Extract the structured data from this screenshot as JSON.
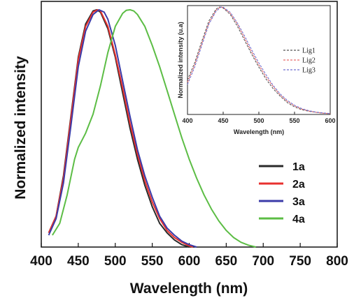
{
  "chart_data": [
    {
      "type": "line",
      "xlabel": "Wavelength (nm)",
      "ylabel": "Normalized intensity",
      "xlim": [
        400,
        800
      ],
      "ylim": [
        0,
        1
      ],
      "xticks": [
        400,
        450,
        500,
        550,
        600,
        650,
        700,
        750,
        800
      ],
      "legend_position": "right",
      "series": [
        {
          "name": "1a",
          "color": "#2a2a2a",
          "x": [
            410,
            420,
            430,
            440,
            450,
            460,
            470,
            475,
            480,
            490,
            500,
            510,
            520,
            530,
            540,
            550,
            560,
            570,
            580,
            590,
            600
          ],
          "y": [
            0.06,
            0.13,
            0.3,
            0.55,
            0.8,
            0.94,
            0.995,
            1.0,
            0.99,
            0.92,
            0.8,
            0.65,
            0.5,
            0.37,
            0.26,
            0.17,
            0.1,
            0.06,
            0.03,
            0.01,
            0.0
          ]
        },
        {
          "name": "2a",
          "color": "#e8312f",
          "x": [
            410,
            420,
            430,
            440,
            450,
            460,
            470,
            476,
            480,
            490,
            500,
            510,
            520,
            530,
            540,
            550,
            560,
            570,
            580,
            590,
            600,
            605
          ],
          "y": [
            0.06,
            0.13,
            0.29,
            0.54,
            0.79,
            0.93,
            0.99,
            1.0,
            0.995,
            0.93,
            0.81,
            0.67,
            0.52,
            0.39,
            0.28,
            0.19,
            0.12,
            0.07,
            0.04,
            0.02,
            0.005,
            0.0
          ]
        },
        {
          "name": "3a",
          "color": "#3b3ba8",
          "x": [
            410,
            420,
            430,
            440,
            450,
            460,
            470,
            478,
            485,
            490,
            500,
            510,
            520,
            530,
            540,
            550,
            560,
            570,
            580,
            590,
            600,
            610
          ],
          "y": [
            0.05,
            0.12,
            0.27,
            0.51,
            0.76,
            0.91,
            0.98,
            1.0,
            0.99,
            0.96,
            0.85,
            0.7,
            0.55,
            0.41,
            0.3,
            0.21,
            0.13,
            0.08,
            0.05,
            0.025,
            0.01,
            0.0
          ]
        },
        {
          "name": "4a",
          "color": "#5cbd45",
          "x": [
            415,
            425,
            435,
            445,
            450,
            460,
            470,
            480,
            490,
            500,
            510,
            515,
            520,
            525,
            530,
            540,
            550,
            560,
            570,
            580,
            590,
            600,
            610,
            620,
            630,
            640,
            650,
            660,
            670,
            680,
            690
          ],
          "y": [
            0.05,
            0.1,
            0.22,
            0.37,
            0.42,
            0.48,
            0.56,
            0.68,
            0.82,
            0.93,
            0.985,
            0.998,
            1.0,
            0.995,
            0.98,
            0.93,
            0.85,
            0.76,
            0.66,
            0.56,
            0.46,
            0.37,
            0.29,
            0.22,
            0.16,
            0.11,
            0.07,
            0.04,
            0.02,
            0.008,
            0.0
          ]
        }
      ]
    },
    {
      "type": "line",
      "xlabel": "Wavelength (nm)",
      "ylabel": "Normalized intensity (u.a)",
      "xlim": [
        400,
        600
      ],
      "ylim": [
        0,
        1
      ],
      "xticks": [
        400,
        450,
        500,
        550,
        600
      ],
      "legend_position": "right",
      "series": [
        {
          "name": "Lig1",
          "color": "#555555",
          "x": [
            400,
            410,
            420,
            430,
            440,
            445,
            450,
            460,
            470,
            480,
            490,
            500,
            510,
            520,
            530,
            540,
            550,
            560,
            570,
            580,
            590,
            600
          ],
          "y": [
            0.32,
            0.48,
            0.68,
            0.87,
            0.98,
            1.0,
            0.99,
            0.93,
            0.82,
            0.69,
            0.56,
            0.44,
            0.33,
            0.24,
            0.17,
            0.11,
            0.07,
            0.045,
            0.03,
            0.02,
            0.012,
            0.008
          ]
        },
        {
          "name": "Lig2",
          "color": "#e86a6a",
          "x": [
            400,
            410,
            420,
            430,
            440,
            446,
            450,
            460,
            470,
            480,
            490,
            500,
            510,
            520,
            530,
            540,
            550,
            560,
            570,
            580,
            590,
            600
          ],
          "y": [
            0.3,
            0.46,
            0.66,
            0.85,
            0.97,
            1.0,
            0.995,
            0.94,
            0.84,
            0.71,
            0.58,
            0.46,
            0.35,
            0.26,
            0.18,
            0.12,
            0.08,
            0.05,
            0.032,
            0.02,
            0.012,
            0.008
          ]
        },
        {
          "name": "Lig3",
          "color": "#6f6fd0",
          "x": [
            400,
            410,
            420,
            430,
            440,
            447,
            450,
            460,
            470,
            480,
            490,
            500,
            510,
            520,
            530,
            540,
            550,
            560,
            570,
            580,
            590,
            600
          ],
          "y": [
            0.28,
            0.44,
            0.64,
            0.84,
            0.96,
            1.0,
            0.998,
            0.95,
            0.85,
            0.73,
            0.6,
            0.48,
            0.37,
            0.27,
            0.19,
            0.13,
            0.085,
            0.055,
            0.035,
            0.022,
            0.014,
            0.009
          ]
        }
      ]
    }
  ]
}
